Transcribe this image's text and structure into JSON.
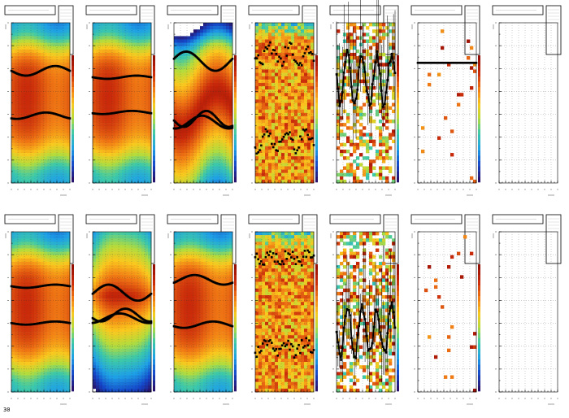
{
  "window": {
    "caption": "30"
  },
  "chart_data": [
    {
      "type": "heatmap",
      "row": 0,
      "col": 0,
      "pattern": "band",
      "curves": [
        {
          "base": 0.3,
          "amp": 0.03,
          "freq": 1.0,
          "phase": 0.0
        },
        {
          "base": 0.58,
          "amp": 0.02,
          "freq": 1.0,
          "phase": 1.0
        }
      ],
      "title": "",
      "xlabel": "",
      "ylabel": ""
    },
    {
      "type": "heatmap",
      "row": 0,
      "col": 1,
      "pattern": "band",
      "curves": [
        {
          "base": 0.34,
          "amp": 0.01,
          "freq": 1.0,
          "phase": 0.0
        },
        {
          "base": 0.56,
          "amp": 0.01,
          "freq": 1.0,
          "phase": 0.5
        }
      ],
      "title": "",
      "xlabel": "",
      "ylabel": ""
    },
    {
      "type": "heatmap",
      "row": 0,
      "col": 2,
      "pattern": "wave",
      "curves": [
        {
          "base": 0.24,
          "amp": 0.06,
          "freq": 1.0,
          "phase": 3.4
        },
        {
          "base": 0.6,
          "amp": 0.05,
          "freq": 1.3,
          "phase": 0.2
        },
        {
          "base": 0.62,
          "amp": 0.04,
          "freq": 1.1,
          "phase": 1.4
        }
      ],
      "title": "",
      "xlabel": "",
      "ylabel": ""
    },
    {
      "type": "heatmap",
      "row": 0,
      "col": 3,
      "pattern": "noise",
      "curves": [
        {
          "base": 0.2,
          "amp": 0.05,
          "freq": 3.0,
          "phase": 0.0,
          "scatter": true
        },
        {
          "base": 0.73,
          "amp": 0.05,
          "freq": 3.0,
          "phase": 1.0,
          "scatter": true
        }
      ],
      "title": "",
      "xlabel": "",
      "ylabel": ""
    },
    {
      "type": "heatmap",
      "row": 0,
      "col": 4,
      "pattern": "sparse",
      "curves": [
        {
          "base": 0.35,
          "amp": 0.15,
          "freq": 4.0,
          "phase": 0.0,
          "scatter": true,
          "errors": true
        }
      ],
      "title": "",
      "xlabel": "",
      "ylabel": ""
    },
    {
      "type": "heatmap",
      "row": 0,
      "col": 5,
      "pattern": "empty",
      "curves": [
        {
          "base": 0.25,
          "amp": 0.0,
          "freq": 1.0,
          "phase": 0.0
        }
      ],
      "title": "",
      "xlabel": "",
      "ylabel": ""
    },
    {
      "type": "heatmap",
      "row": 0,
      "col": 6,
      "pattern": "blank",
      "curves": [],
      "title": "",
      "xlabel": "",
      "ylabel": ""
    },
    {
      "type": "heatmap",
      "row": 1,
      "col": 0,
      "pattern": "band",
      "curves": [
        {
          "base": 0.34,
          "amp": 0.01,
          "freq": 1.0,
          "phase": 0.0
        },
        {
          "base": 0.57,
          "amp": 0.01,
          "freq": 1.0,
          "phase": 0.0
        }
      ],
      "title": "",
      "xlabel": "",
      "ylabel": ""
    },
    {
      "type": "heatmap",
      "row": 1,
      "col": 1,
      "pattern": "blob",
      "curves": [
        {
          "base": 0.38,
          "amp": 0.05,
          "freq": 1.0,
          "phase": 3.0
        },
        {
          "base": 0.52,
          "amp": 0.04,
          "freq": 1.2,
          "phase": 0.5
        },
        {
          "base": 0.54,
          "amp": 0.03,
          "freq": 1.0,
          "phase": 1.8
        }
      ],
      "title": "",
      "xlabel": "",
      "ylabel": ""
    },
    {
      "type": "heatmap",
      "row": 1,
      "col": 2,
      "pattern": "band",
      "curves": [
        {
          "base": 0.3,
          "amp": 0.03,
          "freq": 1.0,
          "phase": 2.5
        },
        {
          "base": 0.58,
          "amp": 0.02,
          "freq": 1.0,
          "phase": 0.5
        }
      ],
      "title": "",
      "xlabel": "",
      "ylabel": ""
    },
    {
      "type": "heatmap",
      "row": 1,
      "col": 3,
      "pattern": "noise",
      "curves": [
        {
          "base": 0.16,
          "amp": 0.03,
          "freq": 3.0,
          "phase": 0.0,
          "scatter": true
        },
        {
          "base": 0.72,
          "amp": 0.04,
          "freq": 3.0,
          "phase": 1.0,
          "scatter": true
        }
      ],
      "title": "",
      "xlabel": "",
      "ylabel": ""
    },
    {
      "type": "heatmap",
      "row": 1,
      "col": 4,
      "pattern": "sparse",
      "curves": [
        {
          "base": 0.62,
          "amp": 0.15,
          "freq": 4.0,
          "phase": 0.0,
          "scatter": true,
          "errors": true
        }
      ],
      "title": "",
      "xlabel": "",
      "ylabel": ""
    },
    {
      "type": "heatmap",
      "row": 1,
      "col": 5,
      "pattern": "empty",
      "curves": [],
      "title": "",
      "xlabel": "",
      "ylabel": ""
    },
    {
      "type": "heatmap",
      "row": 1,
      "col": 6,
      "pattern": "blank",
      "curves": [],
      "title": "",
      "xlabel": "",
      "ylabel": ""
    }
  ]
}
